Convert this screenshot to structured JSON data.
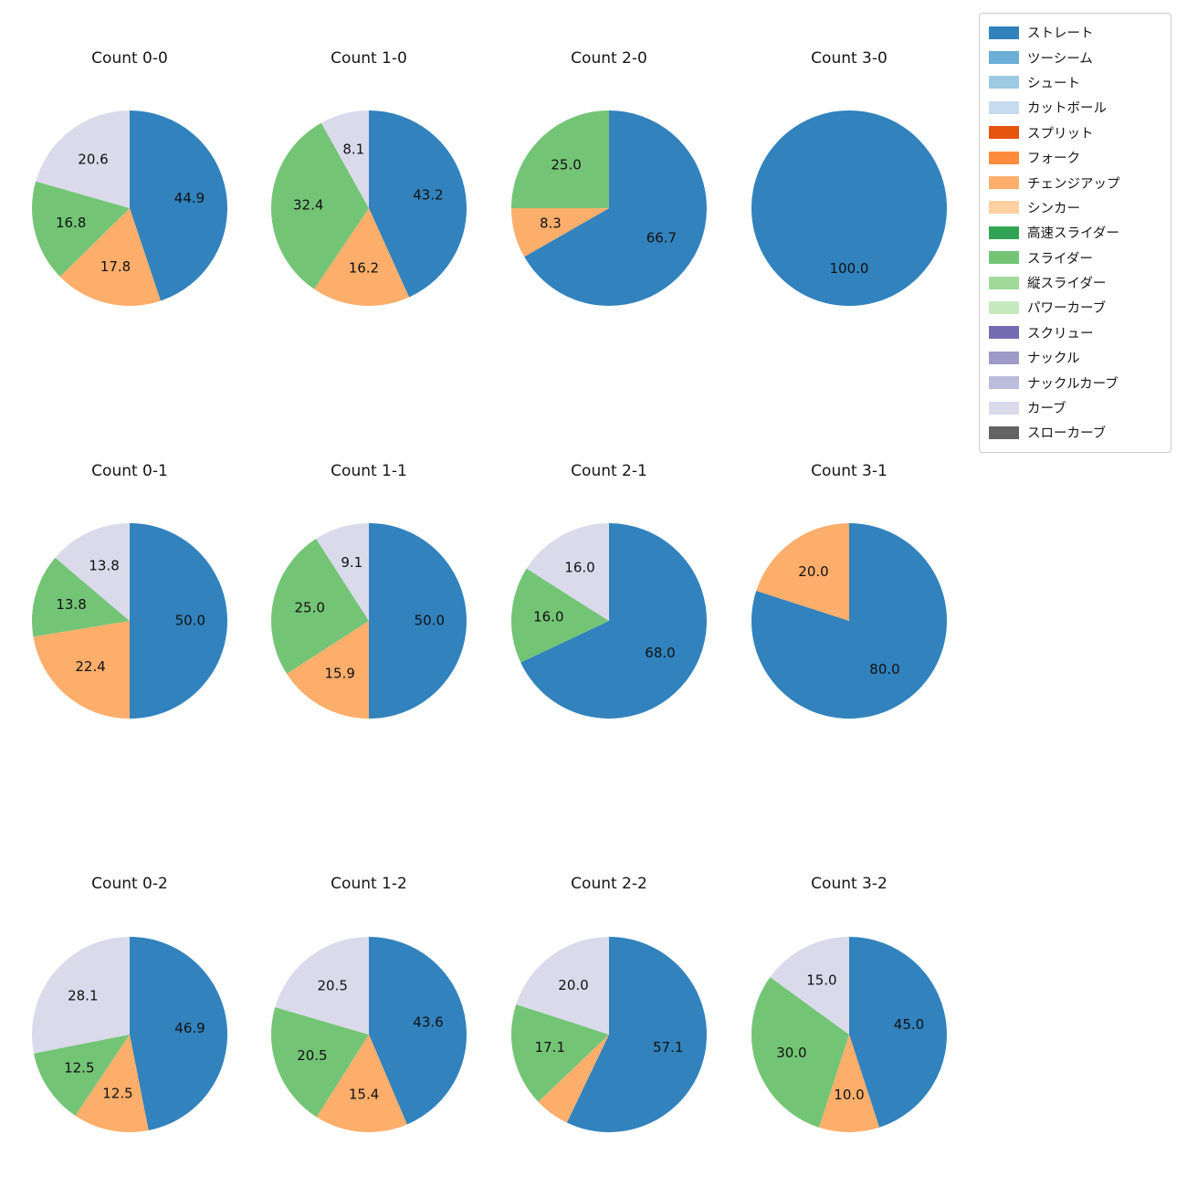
{
  "chart_data": {
    "type": "pie",
    "layout": {
      "rows": 3,
      "cols": 4,
      "legend_position": "top-right",
      "grid": false
    },
    "label_style": {
      "pct_distance": 0.62,
      "decimals": 1
    },
    "legend": [
      {
        "label": "ストレート",
        "color": "#3182bd"
      },
      {
        "label": "ツーシーム",
        "color": "#6baed6"
      },
      {
        "label": "シュート",
        "color": "#9ecae1"
      },
      {
        "label": "カットボール",
        "color": "#c6dbef"
      },
      {
        "label": "スプリット",
        "color": "#e6550d"
      },
      {
        "label": "フォーク",
        "color": "#fd8d3c"
      },
      {
        "label": "チェンジアップ",
        "color": "#fdae6b"
      },
      {
        "label": "シンカー",
        "color": "#fdd0a2"
      },
      {
        "label": "高速スライダー",
        "color": "#31a354"
      },
      {
        "label": "スライダー",
        "color": "#74c476"
      },
      {
        "label": "縦スライダー",
        "color": "#a1d99b"
      },
      {
        "label": "パワーカーブ",
        "color": "#c7e9c0"
      },
      {
        "label": "スクリュー",
        "color": "#756bb1"
      },
      {
        "label": "ナックル",
        "color": "#9e9ac8"
      },
      {
        "label": "ナックルカーブ",
        "color": "#bcbddc"
      },
      {
        "label": "カーブ",
        "color": "#dadaeb"
      },
      {
        "label": "スローカーブ",
        "color": "#636363"
      }
    ],
    "charts": [
      {
        "title": "Count 0-0",
        "slices": [
          {
            "label": "ストレート",
            "value": 44.9,
            "pct_text": "44.9"
          },
          {
            "label": "チェンジアップ",
            "value": 17.8,
            "pct_text": "17.8"
          },
          {
            "label": "スライダー",
            "value": 16.8,
            "pct_text": "16.8"
          },
          {
            "label": "カーブ",
            "value": 20.6,
            "pct_text": "20.6"
          }
        ]
      },
      {
        "title": "Count 1-0",
        "slices": [
          {
            "label": "ストレート",
            "value": 43.2,
            "pct_text": "43.2"
          },
          {
            "label": "チェンジアップ",
            "value": 16.2,
            "pct_text": "16.2"
          },
          {
            "label": "スライダー",
            "value": 32.4,
            "pct_text": "32.4"
          },
          {
            "label": "カーブ",
            "value": 8.1,
            "pct_text": "8.1"
          }
        ]
      },
      {
        "title": "Count 2-0",
        "slices": [
          {
            "label": "ストレート",
            "value": 66.7,
            "pct_text": "66.7"
          },
          {
            "label": "チェンジアップ",
            "value": 8.3,
            "pct_text": "8.3"
          },
          {
            "label": "スライダー",
            "value": 25.0,
            "pct_text": "25.0"
          }
        ]
      },
      {
        "title": "Count 3-0",
        "slices": [
          {
            "label": "ストレート",
            "value": 100.0,
            "pct_text": "100.0"
          }
        ]
      },
      {
        "title": "Count 0-1",
        "slices": [
          {
            "label": "ストレート",
            "value": 50.0,
            "pct_text": "50.0"
          },
          {
            "label": "チェンジアップ",
            "value": 22.4,
            "pct_text": "22.4"
          },
          {
            "label": "スライダー",
            "value": 13.8,
            "pct_text": "13.8"
          },
          {
            "label": "カーブ",
            "value": 13.8,
            "pct_text": "13.8"
          }
        ]
      },
      {
        "title": "Count 1-1",
        "slices": [
          {
            "label": "ストレート",
            "value": 50.0,
            "pct_text": "50.0"
          },
          {
            "label": "チェンジアップ",
            "value": 15.9,
            "pct_text": "15.9"
          },
          {
            "label": "スライダー",
            "value": 25.0,
            "pct_text": "25.0"
          },
          {
            "label": "カーブ",
            "value": 9.1,
            "pct_text": "9.1"
          }
        ]
      },
      {
        "title": "Count 2-1",
        "slices": [
          {
            "label": "ストレート",
            "value": 68.0,
            "pct_text": "68.0"
          },
          {
            "label": "スライダー",
            "value": 16.0,
            "pct_text": "16.0"
          },
          {
            "label": "カーブ",
            "value": 16.0,
            "pct_text": "16.0"
          }
        ]
      },
      {
        "title": "Count 3-1",
        "slices": [
          {
            "label": "ストレート",
            "value": 80.0,
            "pct_text": "80.0"
          },
          {
            "label": "チェンジアップ",
            "value": 20.0,
            "pct_text": "20.0"
          }
        ]
      },
      {
        "title": "Count 0-2",
        "slices": [
          {
            "label": "ストレート",
            "value": 46.9,
            "pct_text": "46.9"
          },
          {
            "label": "チェンジアップ",
            "value": 12.5,
            "pct_text": "12.5"
          },
          {
            "label": "スライダー",
            "value": 12.5,
            "pct_text": "12.5"
          },
          {
            "label": "カーブ",
            "value": 28.1,
            "pct_text": "28.1"
          }
        ]
      },
      {
        "title": "Count 1-2",
        "slices": [
          {
            "label": "ストレート",
            "value": 43.6,
            "pct_text": "43.6"
          },
          {
            "label": "チェンジアップ",
            "value": 15.4,
            "pct_text": "15.4"
          },
          {
            "label": "スライダー",
            "value": 20.5,
            "pct_text": "20.5"
          },
          {
            "label": "カーブ",
            "value": 20.5,
            "pct_text": "20.5"
          }
        ]
      },
      {
        "title": "Count 2-2",
        "slices": [
          {
            "label": "ストレート",
            "value": 57.1,
            "pct_text": "57.1"
          },
          {
            "label": "チェンジアップ",
            "value": 5.8,
            "pct_text": ""
          },
          {
            "label": "スライダー",
            "value": 17.1,
            "pct_text": "17.1"
          },
          {
            "label": "カーブ",
            "value": 20.0,
            "pct_text": "20.0"
          }
        ]
      },
      {
        "title": "Count 3-2",
        "slices": [
          {
            "label": "ストレート",
            "value": 45.0,
            "pct_text": "45.0"
          },
          {
            "label": "チェンジアップ",
            "value": 10.0,
            "pct_text": "10.0"
          },
          {
            "label": "スライダー",
            "value": 30.0,
            "pct_text": "30.0"
          },
          {
            "label": "カーブ",
            "value": 15.0,
            "pct_text": "15.0"
          }
        ]
      }
    ]
  }
}
